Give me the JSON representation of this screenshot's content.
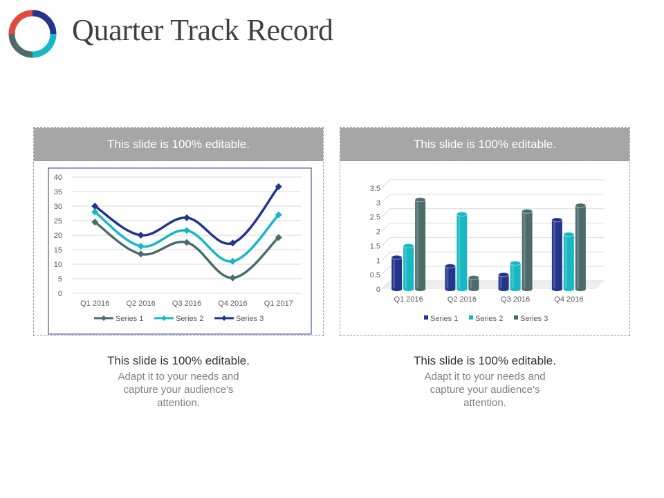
{
  "page": {
    "title": "Quarter Track Record",
    "logo_colors": [
      "#e04a3f",
      "#22348c",
      "#18b7c4",
      "#4e6b6b"
    ]
  },
  "panels": [
    {
      "header": "This slide is 100% editable.",
      "caption_title": "This slide is 100% editable.",
      "caption_body": "Adapt it to your needs and capture your audience's attention."
    },
    {
      "header": "This slide is 100% editable.",
      "caption_title": "This slide is 100% editable.",
      "caption_body": "Adapt it to your needs and capture your audience's attention."
    }
  ],
  "chart_data": [
    {
      "type": "line",
      "smooth": true,
      "marker": "diamond",
      "categories": [
        "Q1 2016",
        "Q2 2016",
        "Q3 2016",
        "Q4 2016",
        "Q1 2017"
      ],
      "ylim": [
        0,
        40
      ],
      "yticks": [
        0,
        5,
        10,
        15,
        20,
        25,
        30,
        35,
        40
      ],
      "grid": true,
      "legend": "bottom",
      "series": [
        {
          "name": "Series 1",
          "values": [
            24.5,
            13.5,
            17.5,
            5.3,
            19.2
          ],
          "color": "#4e6b6b"
        },
        {
          "name": "Series 2",
          "values": [
            28,
            16.2,
            21.6,
            11,
            27
          ],
          "color": "#18b7c4"
        },
        {
          "name": "Series 3",
          "values": [
            30,
            20,
            26,
            17.3,
            36.7
          ],
          "color": "#22348c"
        }
      ]
    },
    {
      "type": "bar",
      "style": "3d-cylinder",
      "categories": [
        "Q1 2016",
        "Q2 2016",
        "Q3 2016",
        "Q4 2016"
      ],
      "ylim": [
        0,
        3.5
      ],
      "yticks": [
        0,
        0.5,
        1,
        1.5,
        2,
        2.5,
        3,
        3.5
      ],
      "grid": true,
      "legend": "bottom",
      "series": [
        {
          "name": "Series 1",
          "values": [
            1.1,
            0.8,
            0.5,
            2.4
          ],
          "color": "#22348c"
        },
        {
          "name": "Series 2",
          "values": [
            1.5,
            2.6,
            0.9,
            1.9
          ],
          "color": "#18b7c4"
        },
        {
          "name": "Series 3",
          "values": [
            3.1,
            0.4,
            2.7,
            2.9
          ],
          "color": "#4e6b6b"
        }
      ]
    }
  ]
}
